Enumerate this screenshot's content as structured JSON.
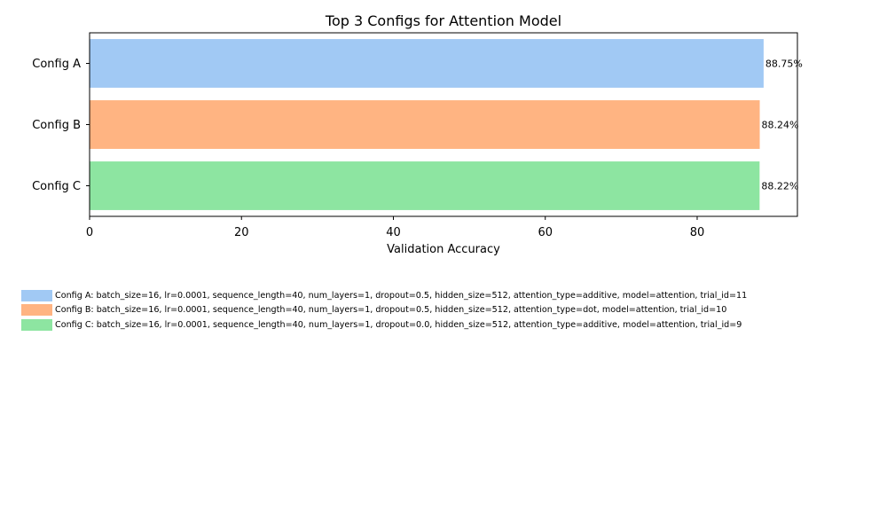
{
  "chart_data": {
    "type": "bar",
    "orientation": "horizontal",
    "title": "Top 3 Configs for Attention Model",
    "xlabel": "Validation Accuracy",
    "ylabel": "",
    "categories": [
      "Config A",
      "Config B",
      "Config C"
    ],
    "values": [
      88.75,
      88.24,
      88.22
    ],
    "value_labels": [
      "88.75%",
      "88.24%",
      "88.22%"
    ],
    "colors": [
      "#a1c9f4",
      "#ffb482",
      "#8de5a1"
    ],
    "xlim": [
      0,
      93.2
    ],
    "xticks": [
      0,
      20,
      40,
      60,
      80
    ],
    "grid": false,
    "legend": {
      "placement": "below-chart",
      "entries": [
        "Config A: batch_size=16, lr=0.0001, sequence_length=40, num_layers=1, dropout=0.5, hidden_size=512, attention_type=additive, model=attention, trial_id=11",
        "Config B: batch_size=16, lr=0.0001, sequence_length=40, num_layers=1, dropout=0.5, hidden_size=512, attention_type=dot, model=attention, trial_id=10",
        "Config C: batch_size=16, lr=0.0001, sequence_length=40, num_layers=1, dropout=0.0, hidden_size=512, attention_type=additive, model=attention, trial_id=9"
      ]
    }
  }
}
